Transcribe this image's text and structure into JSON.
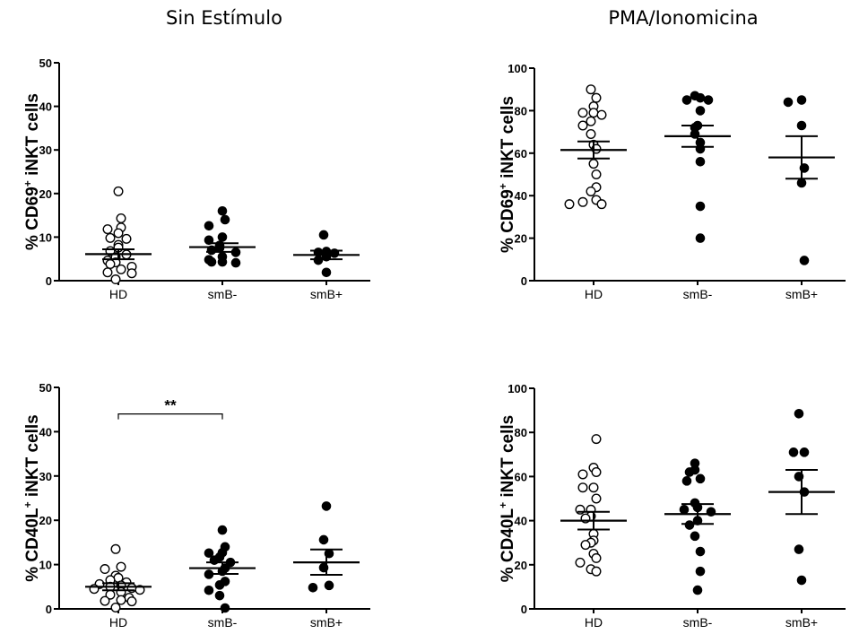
{
  "titles": {
    "left": "Sin Estímulo",
    "right": "PMA/Ionomicina"
  },
  "chart_data": [
    {
      "type": "scatter",
      "column": "Sin Estímulo",
      "ylabel": {
        "pre": "% CD69",
        "sup": "+",
        "post": " iNKT cells"
      },
      "ylim": [
        0,
        50
      ],
      "yticks": [
        0,
        10,
        20,
        30,
        40,
        50
      ],
      "categories": [
        "HD",
        "smB-",
        "smB+"
      ],
      "series": [
        {
          "category": "HD",
          "marker": "open",
          "values": [
            20.5,
            14.3,
            12.2,
            11.8,
            10.9,
            9.8,
            9.6,
            8.2,
            7.6,
            6.8,
            6.0,
            5.4,
            4.6,
            4.2,
            3.8,
            3.2,
            2.6,
            1.9,
            1.7,
            0.3
          ],
          "mean": 6.1,
          "sem_low": 4.9,
          "sem_high": 7.2
        },
        {
          "category": "smB-",
          "marker": "filled",
          "values": [
            16.0,
            14.0,
            12.6,
            10.0,
            9.3,
            8.1,
            7.5,
            7.0,
            6.5,
            5.5,
            4.8,
            4.3,
            4.3,
            4.1
          ],
          "mean": 7.7,
          "sem_low": 6.6,
          "sem_high": 8.6
        },
        {
          "category": "smB+",
          "marker": "filled",
          "values": [
            10.5,
            6.7,
            6.5,
            6.3,
            5.5,
            4.7,
            1.9
          ],
          "mean": 5.9,
          "sem_low": 4.9,
          "sem_high": 6.9
        }
      ]
    },
    {
      "type": "scatter",
      "column": "PMA/Ionomicina",
      "ylabel": {
        "pre": "% CD69",
        "sup": "+",
        "post": " iNKT cells"
      },
      "ylim": [
        0,
        100
      ],
      "yticks": [
        0,
        20,
        40,
        60,
        80,
        100
      ],
      "categories": [
        "HD",
        "smB-",
        "smB+"
      ],
      "series": [
        {
          "category": "HD",
          "marker": "open",
          "values": [
            90,
            86,
            82,
            79,
            79,
            78,
            75,
            73,
            69,
            64,
            62,
            55,
            50,
            44,
            42,
            38,
            37,
            36,
            36
          ],
          "mean": 61.5,
          "sem_low": 57.5,
          "sem_high": 65.5
        },
        {
          "category": "smB-",
          "marker": "filled",
          "values": [
            87,
            86,
            85,
            85,
            80,
            73,
            72,
            69,
            65,
            62,
            56,
            35,
            20
          ],
          "mean": 68.0,
          "sem_low": 63.0,
          "sem_high": 73.0
        },
        {
          "category": "smB+",
          "marker": "filled",
          "values": [
            85,
            84,
            73,
            53,
            46,
            9.5
          ],
          "mean": 58.0,
          "sem_low": 48.0,
          "sem_high": 68.0
        }
      ]
    },
    {
      "type": "scatter",
      "column": "Sin Estímulo",
      "ylabel": {
        "pre": "% CD40L",
        "sup": "+",
        "post": " iNKT cells"
      },
      "ylim": [
        0,
        50
      ],
      "yticks": [
        0,
        10,
        20,
        30,
        40,
        50
      ],
      "categories": [
        "HD",
        "smB-",
        "smB+"
      ],
      "annotations": [
        {
          "from": "HD",
          "to": "smB-",
          "label": "**",
          "y": 44
        }
      ],
      "series": [
        {
          "category": "HD",
          "marker": "open",
          "values": [
            13.5,
            9.5,
            9.0,
            7.5,
            7.0,
            6.5,
            6.0,
            5.6,
            5.3,
            5.0,
            4.7,
            4.5,
            4.3,
            3.8,
            3.2,
            2.5,
            2.0,
            1.8,
            1.7,
            0.3
          ],
          "mean": 5.0,
          "sem_low": 4.2,
          "sem_high": 5.8
        },
        {
          "category": "smB-",
          "marker": "filled",
          "values": [
            17.8,
            14.0,
            12.7,
            12.6,
            11.7,
            11.0,
            10.5,
            9.2,
            8.5,
            7.8,
            6.2,
            5.4,
            4.2,
            3.0,
            0.2
          ],
          "mean": 9.2,
          "sem_low": 7.9,
          "sem_high": 10.5
        },
        {
          "category": "smB+",
          "marker": "filled",
          "values": [
            23.2,
            15.6,
            12.5,
            9.3,
            5.3,
            4.8
          ],
          "mean": 10.5,
          "sem_low": 7.7,
          "sem_high": 13.4
        }
      ]
    },
    {
      "type": "scatter",
      "column": "PMA/Ionomicina",
      "ylabel": {
        "pre": "% CD40L",
        "sup": "+",
        "post": " iNKT cells"
      },
      "ylim": [
        0,
        100
      ],
      "yticks": [
        0,
        20,
        40,
        60,
        80,
        100
      ],
      "categories": [
        "HD",
        "smB-",
        "smB+"
      ],
      "series": [
        {
          "category": "HD",
          "marker": "open",
          "values": [
            77,
            64,
            62,
            61,
            55,
            55,
            50,
            45,
            45,
            42,
            41,
            34,
            31,
            30,
            29,
            25,
            23,
            21,
            18,
            17
          ],
          "mean": 40.0,
          "sem_low": 36.0,
          "sem_high": 44.0
        },
        {
          "category": "smB-",
          "marker": "filled",
          "values": [
            66,
            63,
            62,
            59,
            58,
            48,
            46,
            45,
            44,
            40,
            38,
            33,
            26,
            17,
            8.5
          ],
          "mean": 43.0,
          "sem_low": 38.5,
          "sem_high": 47.5
        },
        {
          "category": "smB+",
          "marker": "filled",
          "values": [
            88.5,
            71,
            71,
            60,
            53,
            27,
            13
          ],
          "mean": 53.0,
          "sem_low": 43.0,
          "sem_high": 63.0
        }
      ]
    }
  ]
}
